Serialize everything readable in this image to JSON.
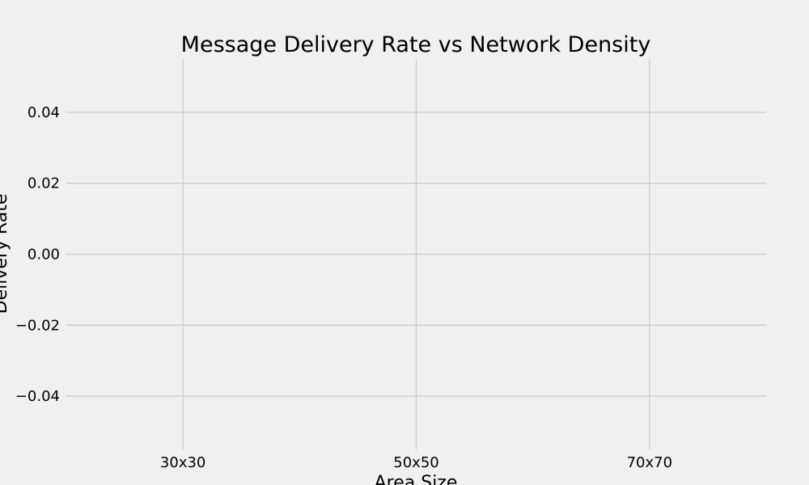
{
  "chart_data": {
    "type": "line",
    "title": "Message Delivery Rate vs Network Density",
    "xlabel": "Area Size",
    "ylabel": "Delivery Rate",
    "categories": [
      "30x30",
      "50x50",
      "70x70"
    ],
    "series": [],
    "ylim": [
      -0.055,
      0.055
    ],
    "yticks": [
      -0.04,
      -0.02,
      0.0,
      0.02,
      0.04
    ],
    "ytick_labels": [
      "−0.04",
      "−0.02",
      "0.00",
      "0.02",
      "0.04"
    ],
    "grid": true
  }
}
